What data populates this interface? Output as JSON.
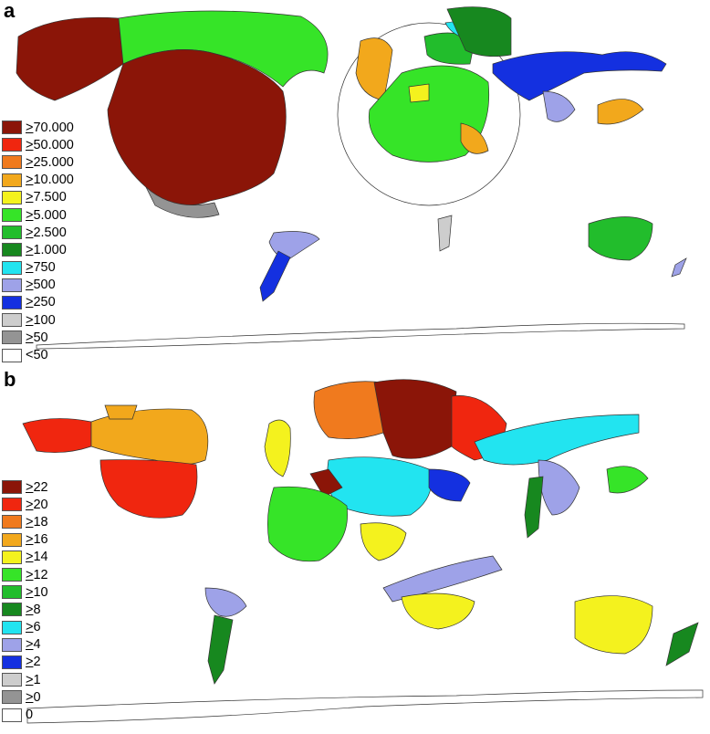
{
  "panels": [
    {
      "label": "a",
      "legend": [
        {
          "sym": ">",
          "val": "70.000",
          "color": "#8B1508"
        },
        {
          "sym": ">",
          "val": "50.000",
          "color": "#F0260F"
        },
        {
          "sym": ">",
          "val": "25.000",
          "color": "#F07A1E"
        },
        {
          "sym": ">",
          "val": "10.000",
          "color": "#F2A81C"
        },
        {
          "sym": ">",
          "val": "7.500",
          "color": "#F4F21E"
        },
        {
          "sym": ">",
          "val": "5.000",
          "color": "#36E428"
        },
        {
          "sym": ">",
          "val": "2.500",
          "color": "#22BD2C"
        },
        {
          "sym": ">",
          "val": "1.000",
          "color": "#17881F"
        },
        {
          "sym": ">",
          "val": "750",
          "color": "#22E4F0"
        },
        {
          "sym": ">",
          "val": "500",
          "color": "#9EA2E8"
        },
        {
          "sym": ">",
          "val": "250",
          "color": "#1430E0"
        },
        {
          "sym": ">",
          "val": "100",
          "color": "#CDCDCD"
        },
        {
          "sym": ">",
          "val": "50",
          "color": "#949494"
        },
        {
          "sym": "<",
          "val": "50",
          "color": "#FFFFFF"
        }
      ]
    },
    {
      "label": "b",
      "legend": [
        {
          "sym": ">",
          "val": "22",
          "color": "#8B1508"
        },
        {
          "sym": ">",
          "val": "20",
          "color": "#F0260F"
        },
        {
          "sym": ">",
          "val": "18",
          "color": "#F07A1E"
        },
        {
          "sym": ">",
          "val": "16",
          "color": "#F2A81C"
        },
        {
          "sym": ">",
          "val": "14",
          "color": "#F4F21E"
        },
        {
          "sym": ">",
          "val": "12",
          "color": "#36E428"
        },
        {
          "sym": ">",
          "val": "10",
          "color": "#22BD2C"
        },
        {
          "sym": ">",
          "val": "8",
          "color": "#17881F"
        },
        {
          "sym": ">",
          "val": "6",
          "color": "#22E4F0"
        },
        {
          "sym": ">",
          "val": "4",
          "color": "#9EA2E8"
        },
        {
          "sym": ">",
          "val": "2",
          "color": "#1430E0"
        },
        {
          "sym": ">",
          "val": "1",
          "color": "#CDCDCD"
        },
        {
          "sym": ">",
          "val": "0",
          "color": "#949494"
        },
        {
          "sym": "",
          "val": "0",
          "color": "#FFFFFF"
        }
      ]
    }
  ]
}
